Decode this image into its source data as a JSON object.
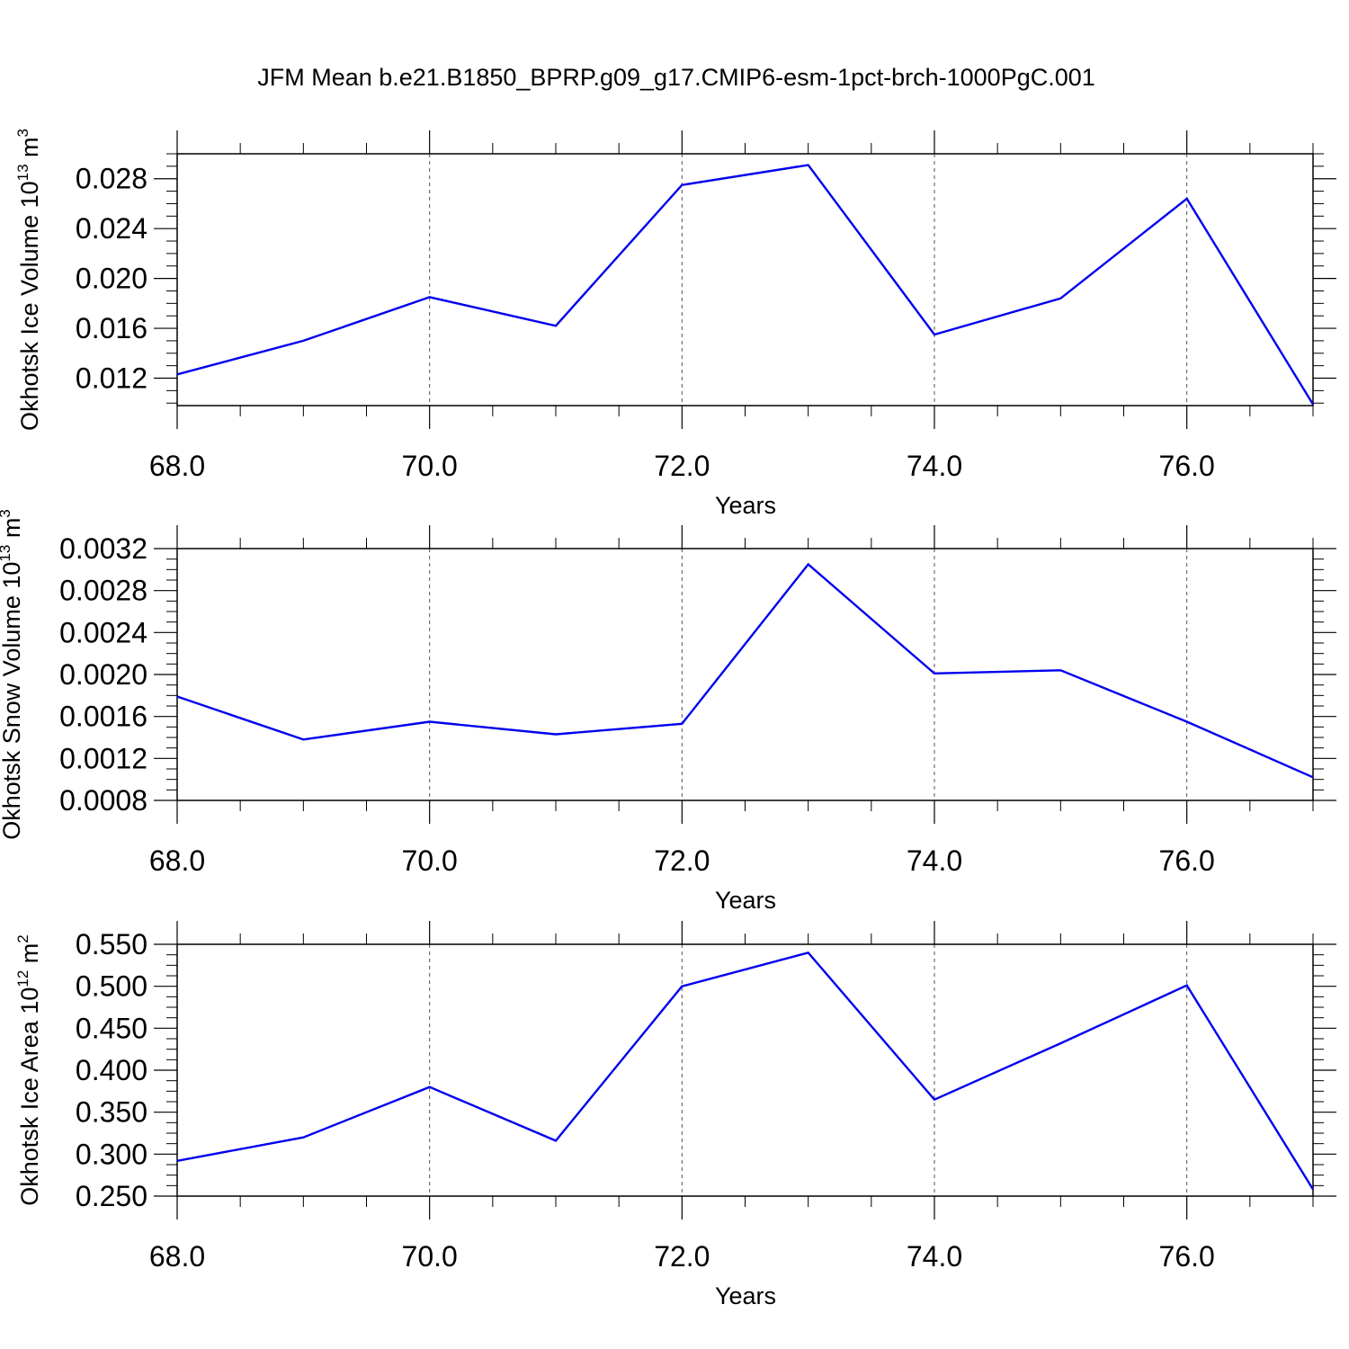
{
  "figure": {
    "title": "JFM Mean b.e21.B1850_BPRP.g09_g17.CMIP6-esm-1pct-brch-1000PgC.001"
  },
  "chart_data": [
    {
      "type": "line",
      "ylabel": "Okhotsk Ice Volume 10",
      "ylabel_exp": "13",
      "ylabel_unit": " m",
      "ylabel_unit_exp": "3",
      "xlabel": "Years",
      "xlim": [
        68,
        77
      ],
      "ylim": [
        0.0098,
        0.03
      ],
      "x_ticks": [
        68,
        70,
        72,
        74,
        76
      ],
      "x_tick_labels": [
        "68.0",
        "70.0",
        "72.0",
        "74.0",
        "76.0"
      ],
      "y_ticks": [
        0.012,
        0.016,
        0.02,
        0.024,
        0.028
      ],
      "y_tick_labels": [
        "0.012",
        "0.016",
        "0.020",
        "0.024",
        "0.028"
      ],
      "grid": "vertical-dashed",
      "line_color": "#0000ee",
      "series": [
        {
          "x": [
            68,
            69,
            70,
            71,
            72,
            73,
            74,
            75,
            76,
            77
          ],
          "values": [
            0.0123,
            0.015,
            0.0185,
            0.0162,
            0.0275,
            0.0291,
            0.0155,
            0.0184,
            0.0264,
            0.0099
          ]
        }
      ]
    },
    {
      "type": "line",
      "ylabel": "Okhotsk Snow Volume 10",
      "ylabel_exp": "13",
      "ylabel_unit": " m",
      "ylabel_unit_exp": "3",
      "xlabel": "Years",
      "xlim": [
        68,
        77
      ],
      "ylim": [
        0.0008,
        0.0032
      ],
      "x_ticks": [
        68,
        70,
        72,
        74,
        76
      ],
      "x_tick_labels": [
        "68.0",
        "70.0",
        "72.0",
        "74.0",
        "76.0"
      ],
      "y_ticks": [
        0.0008,
        0.0012,
        0.0016,
        0.002,
        0.0024,
        0.0028,
        0.0032
      ],
      "y_tick_labels": [
        "0.0008",
        "0.0012",
        "0.0016",
        "0.0020",
        "0.0024",
        "0.0028",
        "0.0032"
      ],
      "grid": "vertical-dashed",
      "line_color": "#0000ee",
      "series": [
        {
          "x": [
            68,
            69,
            70,
            71,
            72,
            73,
            74,
            75,
            76,
            77
          ],
          "values": [
            0.00179,
            0.00138,
            0.00155,
            0.00143,
            0.00153,
            0.00305,
            0.00201,
            0.00204,
            0.00155,
            0.00102
          ]
        }
      ]
    },
    {
      "type": "line",
      "ylabel": "Okhotsk Ice Area 10",
      "ylabel_exp": "12",
      "ylabel_unit": " m",
      "ylabel_unit_exp": "2",
      "xlabel": "Years",
      "xlim": [
        68,
        77
      ],
      "ylim": [
        0.25,
        0.55
      ],
      "x_ticks": [
        68,
        70,
        72,
        74,
        76
      ],
      "x_tick_labels": [
        "68.0",
        "70.0",
        "72.0",
        "74.0",
        "76.0"
      ],
      "y_ticks": [
        0.25,
        0.3,
        0.35,
        0.4,
        0.45,
        0.5,
        0.55
      ],
      "y_tick_labels": [
        "0.250",
        "0.300",
        "0.350",
        "0.400",
        "0.450",
        "0.500",
        "0.550"
      ],
      "grid": "vertical-dashed",
      "line_color": "#0000ee",
      "series": [
        {
          "x": [
            68,
            69,
            70,
            71,
            72,
            73,
            74,
            75,
            76,
            77
          ],
          "values": [
            0.292,
            0.32,
            0.38,
            0.316,
            0.5,
            0.54,
            0.365,
            0.432,
            0.501,
            0.258
          ]
        }
      ]
    }
  ]
}
